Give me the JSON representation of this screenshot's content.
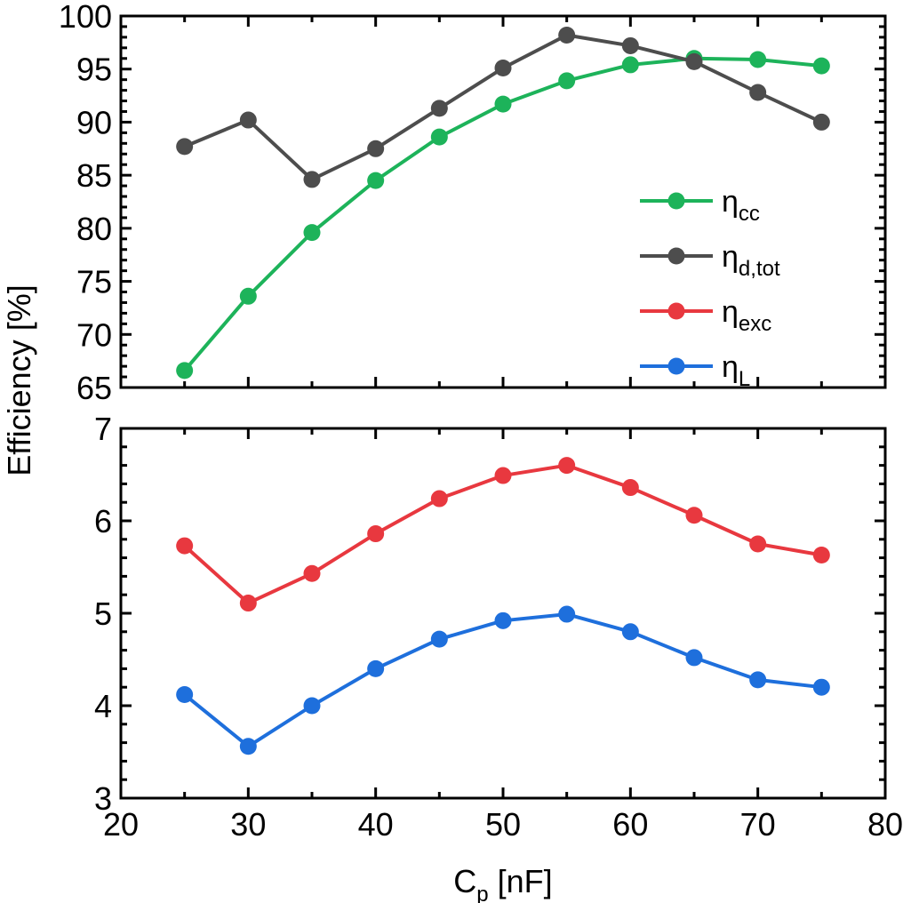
{
  "chart_data": {
    "type": "line",
    "x": [
      25,
      30,
      35,
      40,
      45,
      50,
      55,
      60,
      65,
      70,
      75
    ],
    "xlabel": {
      "main": "C",
      "sub": "p",
      "unit": " [nF]"
    },
    "ylabel": "Efficiency [%]",
    "xlim": [
      20,
      80
    ],
    "xticks": [
      20,
      30,
      40,
      50,
      60,
      70,
      80
    ],
    "grid": false,
    "legend_position": "right",
    "panels": [
      {
        "id": "top",
        "ylim": [
          65,
          100
        ],
        "yticks": [
          65,
          70,
          75,
          80,
          85,
          90,
          95,
          100
        ],
        "series": [
          {
            "name": "η",
            "sub": "cc",
            "color": "#1db35a",
            "values": [
              66.6,
              73.6,
              79.6,
              84.5,
              88.6,
              91.7,
              93.9,
              95.4,
              96.0,
              95.9,
              95.3
            ]
          },
          {
            "name": "η",
            "sub": "d,tot",
            "color": "#4d4d4d",
            "values": [
              87.7,
              90.2,
              84.6,
              87.5,
              91.3,
              95.1,
              98.2,
              97.2,
              95.7,
              92.8,
              90.0
            ]
          }
        ]
      },
      {
        "id": "bottom",
        "ylim": [
          3,
          7
        ],
        "yticks": [
          3,
          4,
          5,
          6,
          7
        ],
        "series": [
          {
            "name": "η",
            "sub": "exc",
            "color": "#e8383f",
            "values": [
              5.73,
              5.11,
              5.43,
              5.86,
              6.24,
              6.49,
              6.6,
              6.36,
              6.06,
              5.75,
              5.63
            ]
          },
          {
            "name": "η",
            "sub": "L",
            "color": "#1e6fdc",
            "values": [
              4.12,
              3.56,
              4.0,
              4.4,
              4.72,
              4.92,
              4.99,
              4.8,
              4.52,
              4.28,
              4.2
            ]
          }
        ]
      }
    ]
  }
}
